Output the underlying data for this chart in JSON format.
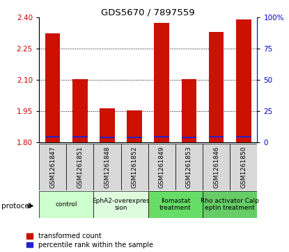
{
  "title": "GDS5670 / 7897559",
  "samples": [
    "GSM1261847",
    "GSM1261851",
    "GSM1261848",
    "GSM1261852",
    "GSM1261849",
    "GSM1261853",
    "GSM1261846",
    "GSM1261850"
  ],
  "red_values": [
    2.325,
    2.105,
    1.965,
    1.955,
    2.375,
    2.105,
    2.33,
    2.39
  ],
  "blue_values": [
    1.825,
    1.825,
    1.82,
    1.82,
    1.825,
    1.82,
    1.825,
    1.825
  ],
  "blue_heights": [
    0.007,
    0.007,
    0.007,
    0.007,
    0.007,
    0.007,
    0.007,
    0.007
  ],
  "ylim_left": [
    1.8,
    2.4
  ],
  "yticks_left": [
    1.8,
    1.95,
    2.1,
    2.25,
    2.4
  ],
  "yticks_right": [
    0,
    25,
    50,
    75,
    100
  ],
  "ylabel_left_color": "#cc0000",
  "ylabel_right_color": "#0000cc",
  "bar_width": 0.55,
  "red_color": "#cc1100",
  "blue_color": "#2222cc",
  "bg_color": "#d8d8d8",
  "protocols": [
    {
      "label": "control",
      "start": 0,
      "end": 2,
      "color": "#ccffcc"
    },
    {
      "label": "EphA2-overexpres\nsion",
      "start": 2,
      "end": 4,
      "color": "#ddfcdd"
    },
    {
      "label": "Ilomastat\ntreatment",
      "start": 4,
      "end": 6,
      "color": "#66dd66"
    },
    {
      "label": "Rho activator Calp\neptin treatment",
      "start": 6,
      "end": 8,
      "color": "#66cc66"
    }
  ],
  "legend_red": "transformed count",
  "legend_blue": "percentile rank within the sample",
  "protocol_label": "protocol"
}
